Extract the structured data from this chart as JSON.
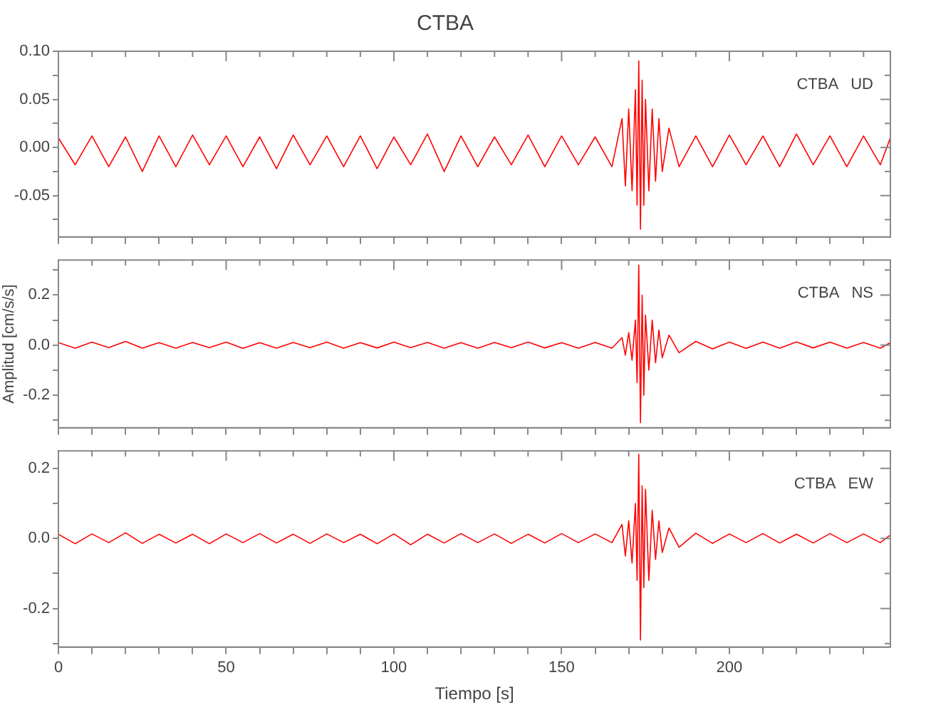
{
  "chart_data": [
    {
      "type": "line",
      "title": "CTBA",
      "annotations": [
        "CTBA   UD"
      ],
      "tick_labels": "y",
      "grid": false,
      "legend": false,
      "marker": "none",
      "line_style": "solid",
      "x": [
        0,
        5,
        10,
        15,
        20,
        25,
        30,
        35,
        40,
        45,
        50,
        55,
        60,
        65,
        70,
        75,
        80,
        85,
        90,
        95,
        100,
        105,
        110,
        115,
        120,
        125,
        130,
        135,
        140,
        145,
        150,
        155,
        160,
        165,
        168,
        169,
        170,
        171,
        172,
        172.5,
        173,
        173.5,
        174,
        174.5,
        175,
        176,
        177,
        178,
        179,
        180,
        182,
        185,
        190,
        195,
        200,
        205,
        210,
        215,
        220,
        225,
        230,
        235,
        240,
        245,
        248
      ],
      "series": [
        {
          "color": "#ff0000",
          "values": [
            0.01,
            -0.018,
            0.012,
            -0.02,
            0.011,
            -0.025,
            0.012,
            -0.02,
            0.013,
            -0.018,
            0.012,
            -0.02,
            0.011,
            -0.022,
            0.013,
            -0.018,
            0.012,
            -0.02,
            0.012,
            -0.022,
            0.011,
            -0.018,
            0.014,
            -0.025,
            0.012,
            -0.02,
            0.011,
            -0.018,
            0.013,
            -0.02,
            0.012,
            -0.018,
            0.011,
            -0.02,
            0.03,
            -0.04,
            0.04,
            -0.045,
            0.06,
            -0.06,
            0.09,
            -0.085,
            0.07,
            -0.06,
            0.05,
            -0.045,
            0.04,
            -0.035,
            0.03,
            -0.025,
            0.02,
            -0.02,
            0.012,
            -0.02,
            0.013,
            -0.018,
            0.012,
            -0.02,
            0.014,
            -0.018,
            0.012,
            -0.02,
            0.012,
            -0.018,
            0.01
          ]
        }
      ],
      "xlim": [
        0,
        248
      ],
      "xticks": [
        0,
        {
          "value": 10,
          "label": null
        },
        {
          "value": 20,
          "label": null
        },
        {
          "value": 30,
          "label": null
        },
        {
          "value": 40,
          "label": null
        },
        50,
        {
          "value": 60,
          "label": null
        },
        {
          "value": 70,
          "label": null
        },
        {
          "value": 80,
          "label": null
        },
        {
          "value": 90,
          "label": null
        },
        100,
        {
          "value": 110,
          "label": null
        },
        {
          "value": 120,
          "label": null
        },
        {
          "value": 130,
          "label": null
        },
        {
          "value": 140,
          "label": null
        },
        150,
        {
          "value": 160,
          "label": null
        },
        {
          "value": 170,
          "label": null
        },
        {
          "value": 180,
          "label": null
        },
        {
          "value": 190,
          "label": null
        },
        200,
        {
          "value": 210,
          "label": null
        },
        {
          "value": 220,
          "label": null
        },
        {
          "value": 230,
          "label": null
        },
        {
          "value": 240,
          "label": null
        }
      ],
      "ylim": [
        -0.093,
        0.1
      ],
      "yticks": [
        {
          "value": -0.075,
          "label": null
        },
        {
          "value": -0.05,
          "label": "-0.05"
        },
        {
          "value": -0.025,
          "label": null
        },
        {
          "value": 0,
          "label": "0.00"
        },
        {
          "value": 0.025,
          "label": null
        },
        {
          "value": 0.05,
          "label": "0.05"
        },
        {
          "value": 0.075,
          "label": null
        },
        {
          "value": 0.1,
          "label": "0.10"
        }
      ]
    },
    {
      "type": "line",
      "ylabel": "Amplitud [cm/s/s]",
      "annotations": [
        "CTBA   NS"
      ],
      "tick_labels": "y",
      "grid": false,
      "legend": false,
      "marker": "none",
      "line_style": "solid",
      "x": [
        0,
        5,
        10,
        15,
        20,
        25,
        30,
        35,
        40,
        45,
        50,
        55,
        60,
        65,
        70,
        75,
        80,
        85,
        90,
        95,
        100,
        105,
        110,
        115,
        120,
        125,
        130,
        135,
        140,
        145,
        150,
        155,
        160,
        165,
        168,
        169,
        170,
        171,
        172,
        172.5,
        173,
        173.5,
        174,
        174.5,
        175,
        176,
        177,
        178,
        179,
        180,
        182,
        185,
        190,
        195,
        200,
        205,
        210,
        215,
        220,
        225,
        230,
        235,
        240,
        245,
        248
      ],
      "series": [
        {
          "color": "#ff0000",
          "values": [
            0.01,
            -0.012,
            0.012,
            -0.01,
            0.015,
            -0.012,
            0.01,
            -0.012,
            0.011,
            -0.01,
            0.012,
            -0.013,
            0.01,
            -0.012,
            0.011,
            -0.01,
            0.012,
            -0.012,
            0.01,
            -0.011,
            0.012,
            -0.01,
            0.011,
            -0.012,
            0.01,
            -0.012,
            0.011,
            -0.01,
            0.012,
            -0.011,
            0.01,
            -0.012,
            0.011,
            -0.012,
            0.03,
            -0.04,
            0.05,
            -0.06,
            0.1,
            -0.15,
            0.32,
            -0.31,
            0.2,
            -0.2,
            0.12,
            -0.1,
            0.1,
            -0.07,
            0.06,
            -0.05,
            0.04,
            -0.03,
            0.015,
            -0.015,
            0.012,
            -0.013,
            0.012,
            -0.012,
            0.013,
            -0.011,
            0.012,
            -0.012,
            0.011,
            -0.012,
            0.01
          ]
        }
      ],
      "xlim": [
        0,
        248
      ],
      "xticks": [
        0,
        {
          "value": 10,
          "label": null
        },
        {
          "value": 20,
          "label": null
        },
        {
          "value": 30,
          "label": null
        },
        {
          "value": 40,
          "label": null
        },
        50,
        {
          "value": 60,
          "label": null
        },
        {
          "value": 70,
          "label": null
        },
        {
          "value": 80,
          "label": null
        },
        {
          "value": 90,
          "label": null
        },
        100,
        {
          "value": 110,
          "label": null
        },
        {
          "value": 120,
          "label": null
        },
        {
          "value": 130,
          "label": null
        },
        {
          "value": 140,
          "label": null
        },
        150,
        {
          "value": 160,
          "label": null
        },
        {
          "value": 170,
          "label": null
        },
        {
          "value": 180,
          "label": null
        },
        {
          "value": 190,
          "label": null
        },
        200,
        {
          "value": 210,
          "label": null
        },
        {
          "value": 220,
          "label": null
        },
        {
          "value": 230,
          "label": null
        },
        {
          "value": 240,
          "label": null
        }
      ],
      "ylim": [
        -0.33,
        0.34
      ],
      "yticks": [
        {
          "value": -0.3,
          "label": null
        },
        {
          "value": -0.2,
          "label": "-0.2"
        },
        {
          "value": -0.1,
          "label": null
        },
        {
          "value": 0,
          "label": "0.0"
        },
        {
          "value": 0.1,
          "label": null
        },
        {
          "value": 0.2,
          "label": "0.2"
        },
        {
          "value": 0.3,
          "label": null
        }
      ]
    },
    {
      "type": "line",
      "xlabel": "Tiempo [s]",
      "annotations": [
        "CTBA   EW"
      ],
      "grid": false,
      "legend": false,
      "marker": "none",
      "line_style": "solid",
      "x": [
        0,
        5,
        10,
        15,
        20,
        25,
        30,
        35,
        40,
        45,
        50,
        55,
        60,
        65,
        70,
        75,
        80,
        85,
        90,
        95,
        100,
        105,
        110,
        115,
        120,
        125,
        130,
        135,
        140,
        145,
        150,
        155,
        160,
        165,
        168,
        169,
        170,
        171,
        172,
        172.5,
        173,
        173.5,
        174,
        174.5,
        175,
        176,
        177,
        178,
        179,
        180,
        182,
        185,
        190,
        195,
        200,
        205,
        210,
        215,
        220,
        225,
        230,
        235,
        240,
        245,
        248
      ],
      "series": [
        {
          "color": "#ff0000",
          "values": [
            0.012,
            -0.015,
            0.013,
            -0.012,
            0.016,
            -0.014,
            0.012,
            -0.013,
            0.012,
            -0.015,
            0.013,
            -0.012,
            0.014,
            -0.013,
            0.012,
            -0.014,
            0.013,
            -0.012,
            0.012,
            -0.015,
            0.013,
            -0.018,
            0.012,
            -0.013,
            0.014,
            -0.012,
            0.013,
            -0.014,
            0.012,
            -0.013,
            0.014,
            -0.012,
            0.013,
            -0.012,
            0.04,
            -0.05,
            0.05,
            -0.07,
            0.1,
            -0.12,
            0.24,
            -0.29,
            0.15,
            -0.14,
            0.14,
            -0.12,
            0.08,
            -0.06,
            0.05,
            -0.04,
            0.03,
            -0.025,
            0.015,
            -0.014,
            0.013,
            -0.012,
            0.014,
            -0.013,
            0.012,
            -0.013,
            0.014,
            -0.012,
            0.013,
            -0.012,
            0.01
          ]
        }
      ],
      "xlim": [
        0,
        248
      ],
      "xticks": [
        0,
        {
          "value": 10,
          "label": null
        },
        {
          "value": 20,
          "label": null
        },
        {
          "value": 30,
          "label": null
        },
        {
          "value": 40,
          "label": null
        },
        50,
        {
          "value": 60,
          "label": null
        },
        {
          "value": 70,
          "label": null
        },
        {
          "value": 80,
          "label": null
        },
        {
          "value": 90,
          "label": null
        },
        100,
        {
          "value": 110,
          "label": null
        },
        {
          "value": 120,
          "label": null
        },
        {
          "value": 130,
          "label": null
        },
        {
          "value": 140,
          "label": null
        },
        150,
        {
          "value": 160,
          "label": null
        },
        {
          "value": 170,
          "label": null
        },
        {
          "value": 180,
          "label": null
        },
        {
          "value": 190,
          "label": null
        },
        200,
        {
          "value": 210,
          "label": null
        },
        {
          "value": 220,
          "label": null
        },
        {
          "value": 230,
          "label": null
        },
        {
          "value": 240,
          "label": null
        }
      ],
      "ylim": [
        -0.31,
        0.25
      ],
      "yticks": [
        {
          "value": -0.3,
          "label": null
        },
        {
          "value": -0.2,
          "label": "-0.2"
        },
        {
          "value": -0.1,
          "label": null
        },
        {
          "value": 0,
          "label": "0.0"
        },
        {
          "value": 0.1,
          "label": null
        },
        {
          "value": 0.2,
          "label": "0.2"
        }
      ]
    }
  ]
}
